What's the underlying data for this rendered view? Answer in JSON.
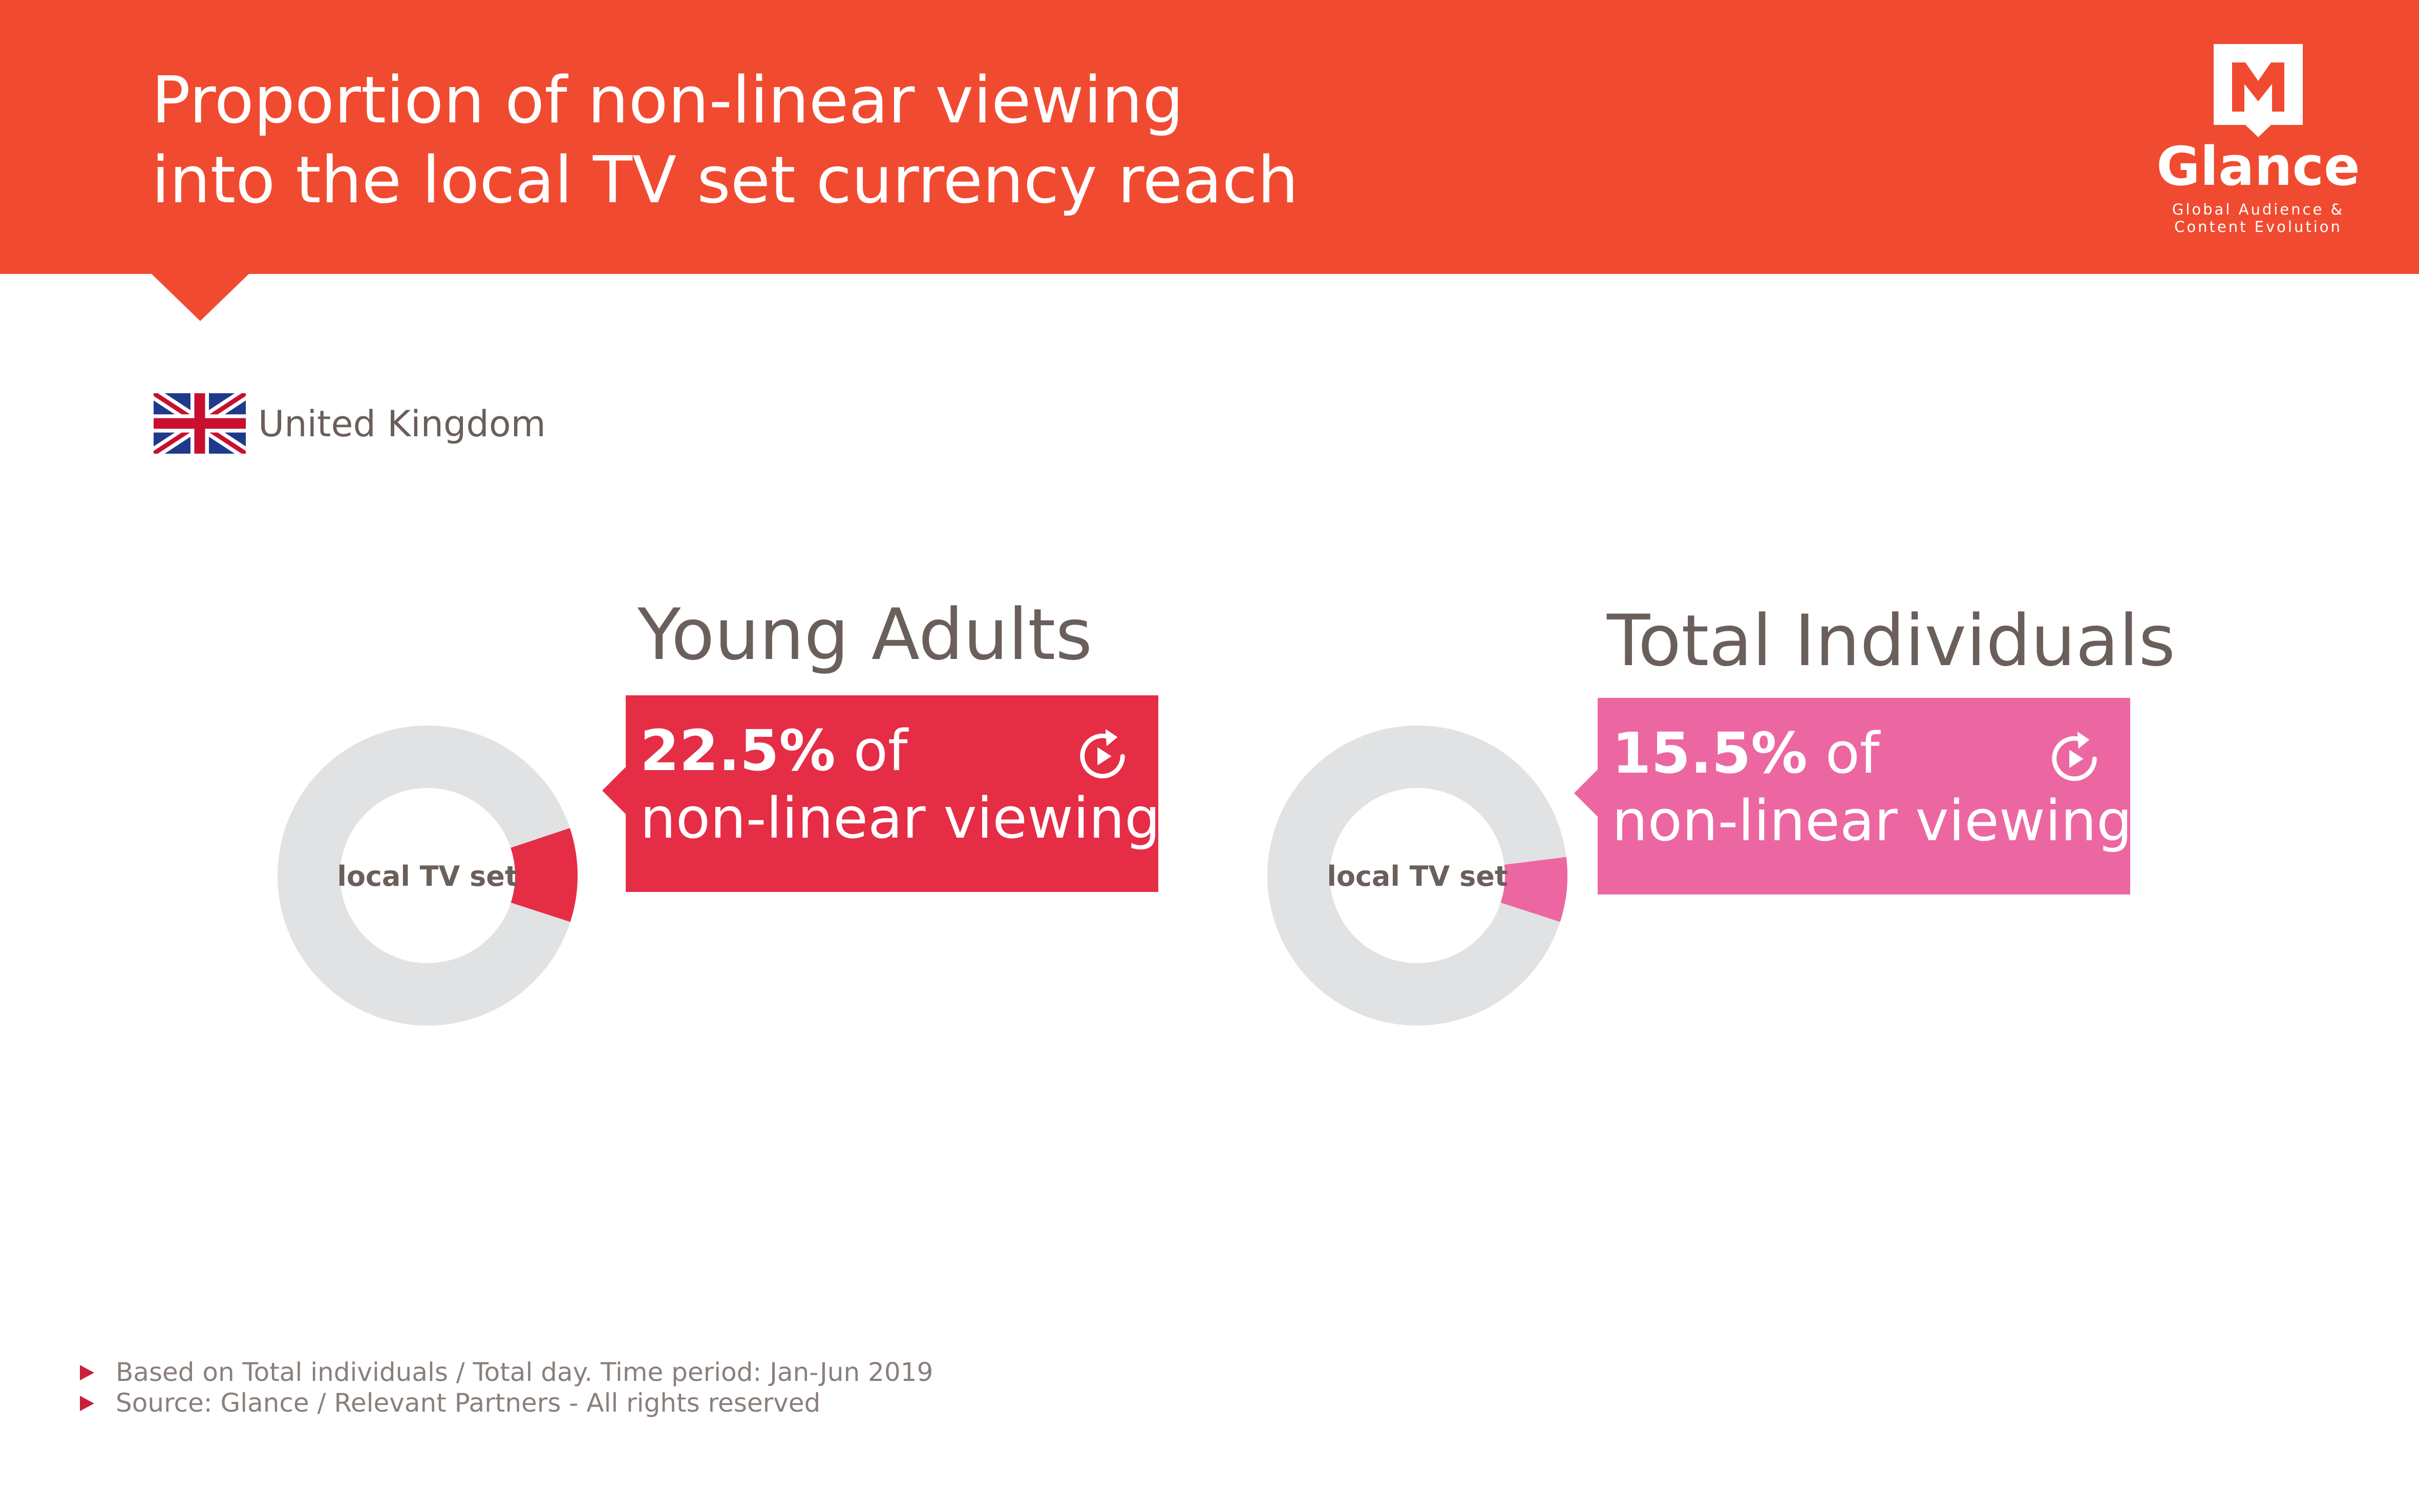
{
  "header": {
    "title_line1": "Proportion of non-linear viewing",
    "title_line2": "into the local TV set currency reach",
    "background_color": "#f04b30"
  },
  "logo": {
    "icon": "glance-m-logo-icon",
    "name": "Glance",
    "tagline_line1": "Global Audience &",
    "tagline_line2": "Content Evolution"
  },
  "country": {
    "flag_icon": "uk-flag-icon",
    "name": "United Kingdom"
  },
  "chart_data": [
    {
      "type": "pie",
      "title": "Young Adults",
      "center_label": "local TV set",
      "slices": [
        {
          "label": "non-linear viewing",
          "value": 22.5,
          "color": "#e52d46"
        }
      ],
      "callout": {
        "value_text": "22.5%",
        "suffix": "of",
        "line2": "non-linear viewing"
      },
      "ring_color": "#e1e2e4",
      "accent_color": "#e52d46",
      "icon": "replay-icon"
    },
    {
      "type": "pie",
      "title": "Total Individuals",
      "center_label": "local TV set",
      "slices": [
        {
          "label": "non-linear viewing",
          "value": 15.5,
          "color": "#ec67a1"
        }
      ],
      "callout": {
        "value_text": "15.5%",
        "suffix": "of",
        "line2": "non-linear viewing"
      },
      "ring_color": "#e1e2e4",
      "accent_color": "#ec67a1",
      "icon": "replay-icon"
    }
  ],
  "footer": {
    "note1": "Based on  Total individuals / Total day. Time period: Jan-Jun 2019",
    "note2": "Source: Glance / Relevant Partners - All rights reserved",
    "bullet_color": "#c8203c"
  }
}
